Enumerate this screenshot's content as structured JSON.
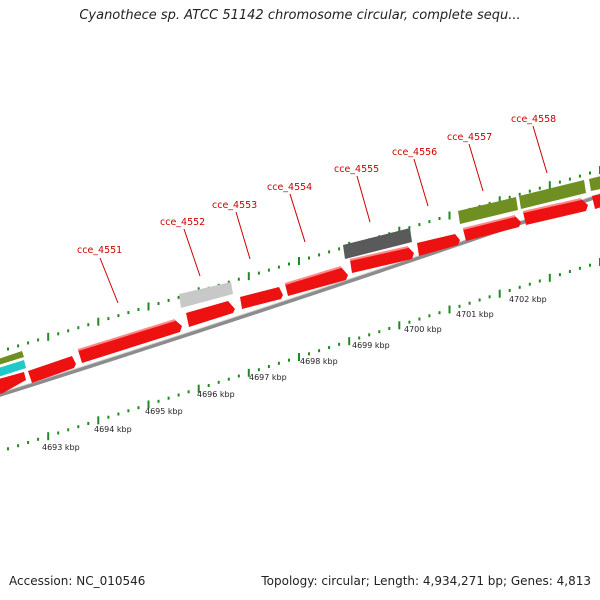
{
  "title": "Cyanothece sp. ATCC 51142 chromosome circular, complete sequ...",
  "accession_text": "Accession: NC_010546",
  "summary_text": "Topology: circular; Length: 4,934,271 bp; Genes: 4,813",
  "colors": {
    "gene": "#ee1111",
    "gene_label": "#cc0000",
    "tick": "#1f8a1f",
    "backbone": "#8c8c8c",
    "olive": "#6f8f23",
    "dark_gray": "#5a5a5a",
    "light_gray": "#c8c8c8",
    "cyan": "#20c8c8"
  },
  "gene_labels": [
    "cce_4551",
    "cce_4552",
    "cce_4553",
    "cce_4554",
    "cce_4555",
    "cce_4556",
    "cce_4557",
    "cce_4558"
  ],
  "kbp_labels": [
    "4693 kbp",
    "4694 kbp",
    "4695 kbp",
    "4696 kbp",
    "4697 kbp",
    "4698 kbp",
    "4699 kbp",
    "4700 kbp",
    "4701 kbp",
    "4702 kbp"
  ]
}
